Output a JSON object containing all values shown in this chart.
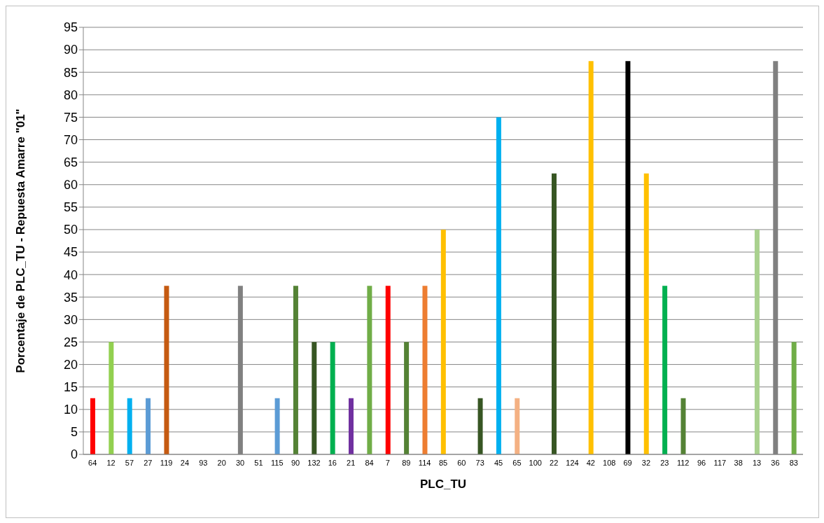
{
  "chart_data": {
    "type": "bar",
    "xlabel": "PLC_TU",
    "ylabel": "Porcentaje de PLC_TU - Repuesta Amarre \"01\"",
    "categories": [
      "64",
      "12",
      "57",
      "27",
      "119",
      "24",
      "93",
      "20",
      "30",
      "51",
      "115",
      "90",
      "132",
      "16",
      "21",
      "84",
      "7",
      "89",
      "114",
      "85",
      "60",
      "73",
      "45",
      "65",
      "100",
      "22",
      "124",
      "42",
      "108",
      "69",
      "32",
      "23",
      "112",
      "96",
      "117",
      "38",
      "13",
      "36",
      "83"
    ],
    "values": [
      12.5,
      25,
      12.5,
      12.5,
      37.5,
      0,
      0,
      0,
      37.5,
      0,
      12.5,
      37.5,
      25,
      25,
      12.5,
      37.5,
      37.5,
      25,
      37.5,
      50,
      0,
      12.5,
      75,
      12.5,
      0,
      62.5,
      0,
      87.5,
      0,
      87.5,
      62.5,
      37.5,
      12.5,
      0,
      0,
      0,
      50,
      87.5,
      25
    ],
    "colors": [
      "#ff0000",
      "#92d050",
      "#00b0f0",
      "#5b9bd5",
      "#c55a11",
      "#808080",
      "#808080",
      "#808080",
      "#808080",
      "#808080",
      "#5b9bd5",
      "#548235",
      "#375623",
      "#00b050",
      "#7030a0",
      "#70ad47",
      "#ff0000",
      "#548235",
      "#ed7d31",
      "#ffc000",
      "#808080",
      "#375623",
      "#00b0f0",
      "#f4b183",
      "#808080",
      "#375623",
      "#808080",
      "#ffc000",
      "#808080",
      "#000000",
      "#ffc000",
      "#00b050",
      "#548235",
      "#808080",
      "#808080",
      "#808080",
      "#a9d18e",
      "#808080",
      "#70ad47"
    ],
    "ylim": [
      0,
      95
    ],
    "yticks": [
      0,
      5,
      10,
      15,
      20,
      25,
      30,
      35,
      40,
      45,
      50,
      55,
      60,
      65,
      70,
      75,
      80,
      85,
      90,
      95
    ],
    "grid": "y",
    "legend": false
  }
}
